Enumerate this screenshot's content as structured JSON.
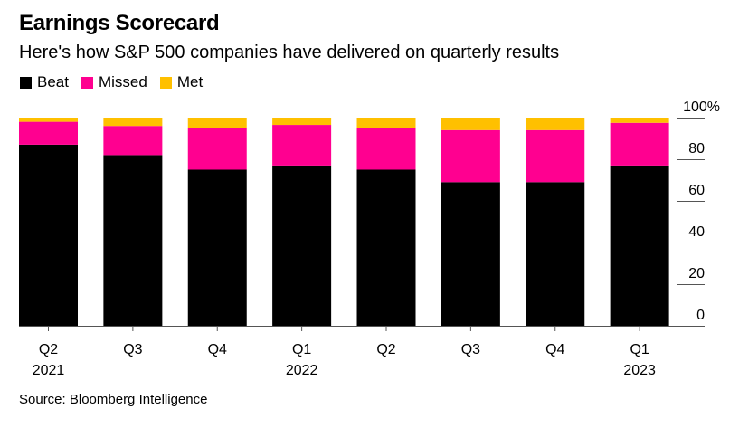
{
  "title": "Earnings Scorecard",
  "subtitle": "Here's how S&P 500 companies have delivered on quarterly results",
  "source": "Source: Bloomberg Intelligence",
  "legend": [
    {
      "label": "Beat",
      "color": "#000000"
    },
    {
      "label": "Missed",
      "color": "#FF0090"
    },
    {
      "label": "Met",
      "color": "#FFC000"
    }
  ],
  "chart_data": {
    "type": "bar",
    "stacked": true,
    "title": "Earnings Scorecard",
    "subtitle": "Here's how S&P 500 companies have delivered on quarterly results",
    "xlabel": "",
    "ylabel": "",
    "ylim": [
      0,
      100
    ],
    "y_ticks": [
      0,
      20,
      40,
      60,
      80,
      100
    ],
    "y_tick_labels": [
      "0",
      "20",
      "40",
      "60",
      "80",
      "100%"
    ],
    "y_axis_side": "right",
    "grid": false,
    "legend_position": "top-left",
    "categories": [
      "Q2 2021",
      "Q3 2021",
      "Q4 2021",
      "Q1 2022",
      "Q2 2022",
      "Q3 2022",
      "Q4 2022",
      "Q1 2023"
    ],
    "category_labels": [
      [
        "Q2",
        "2021"
      ],
      [
        "Q3",
        ""
      ],
      [
        "Q4",
        ""
      ],
      [
        "Q1",
        "2022"
      ],
      [
        "Q2",
        ""
      ],
      [
        "Q3",
        ""
      ],
      [
        "Q4",
        ""
      ],
      [
        "Q1",
        "2023"
      ]
    ],
    "series": [
      {
        "name": "Beat",
        "color": "#000000",
        "values": [
          87,
          82,
          75,
          77,
          75,
          69,
          69,
          77
        ]
      },
      {
        "name": "Missed",
        "color": "#FF0090",
        "values": [
          11,
          14,
          20,
          19.5,
          20,
          25,
          25,
          20.5
        ]
      },
      {
        "name": "Met",
        "color": "#FFC000",
        "values": [
          2,
          4,
          5,
          3.5,
          5,
          6,
          6,
          2.5
        ]
      }
    ]
  }
}
